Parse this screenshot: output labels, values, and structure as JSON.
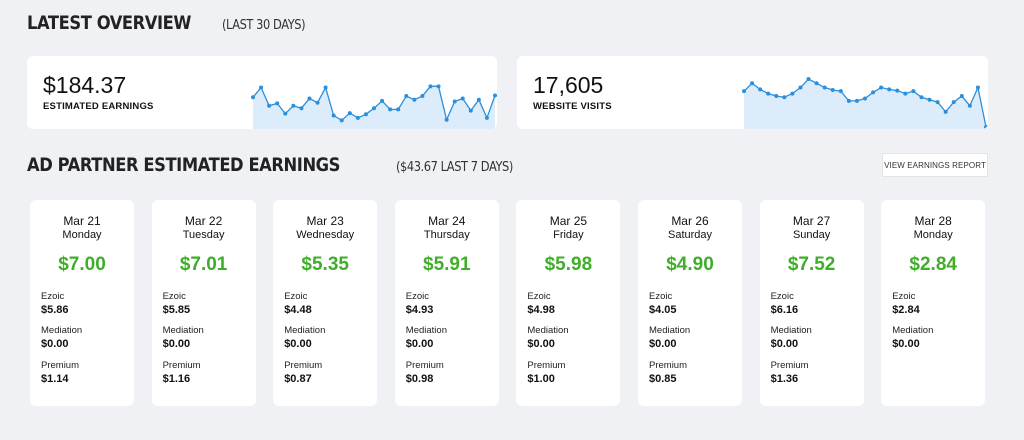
{
  "overview": {
    "title": "LATEST OVERVIEW",
    "subtitle": "(LAST 30 DAYS)",
    "earnings": {
      "value": "$184.37",
      "label": "ESTIMATED EARNINGS"
    },
    "visits": {
      "value": "17,605",
      "label": "WEBSITE VISITS"
    }
  },
  "partners": {
    "title": "AD PARTNER ESTIMATED EARNINGS",
    "subtitle": "($43.67 LAST 7 DAYS)",
    "report_button": "VIEW EARNINGS REPORT"
  },
  "chart_data": [
    {
      "type": "area",
      "series": [
        {
          "values": [
            0.58,
            0.42,
            0.72,
            0.68,
            0.85,
            0.72,
            0.76,
            0.6,
            0.67,
            0.42,
            0.88,
            0.96,
            0.84,
            0.92,
            0.86,
            0.76,
            0.64,
            0.78,
            0.78,
            0.56,
            0.62,
            0.56,
            0.4,
            0.4,
            0.95,
            0.65,
            0.6,
            0.8,
            0.62,
            0.92,
            0.55
          ]
        }
      ],
      "color": "#2b8fdb"
    },
    {
      "type": "area",
      "series": [
        {
          "values": [
            0.48,
            0.35,
            0.45,
            0.52,
            0.56,
            0.58,
            0.52,
            0.42,
            0.28,
            0.35,
            0.42,
            0.46,
            0.48,
            0.64,
            0.64,
            0.6,
            0.5,
            0.42,
            0.45,
            0.47,
            0.52,
            0.48,
            0.58,
            0.62,
            0.66,
            0.82,
            0.66,
            0.56,
            0.72,
            0.42,
            1.25
          ]
        }
      ],
      "color": "#2b8fdb"
    }
  ],
  "days": [
    {
      "date": "Mar 21",
      "weekday": "Monday",
      "total": "$7.00",
      "rows": [
        {
          "label": "Ezoic",
          "amount": "$5.86"
        },
        {
          "label": "Mediation",
          "amount": "$0.00"
        },
        {
          "label": "Premium",
          "amount": "$1.14"
        }
      ]
    },
    {
      "date": "Mar 22",
      "weekday": "Tuesday",
      "total": "$7.01",
      "rows": [
        {
          "label": "Ezoic",
          "amount": "$5.85"
        },
        {
          "label": "Mediation",
          "amount": "$0.00"
        },
        {
          "label": "Premium",
          "amount": "$1.16"
        }
      ]
    },
    {
      "date": "Mar 23",
      "weekday": "Wednesday",
      "total": "$5.35",
      "rows": [
        {
          "label": "Ezoic",
          "amount": "$4.48"
        },
        {
          "label": "Mediation",
          "amount": "$0.00"
        },
        {
          "label": "Premium",
          "amount": "$0.87"
        }
      ]
    },
    {
      "date": "Mar 24",
      "weekday": "Thursday",
      "total": "$5.91",
      "rows": [
        {
          "label": "Ezoic",
          "amount": "$4.93"
        },
        {
          "label": "Mediation",
          "amount": "$0.00"
        },
        {
          "label": "Premium",
          "amount": "$0.98"
        }
      ]
    },
    {
      "date": "Mar 25",
      "weekday": "Friday",
      "total": "$5.98",
      "rows": [
        {
          "label": "Ezoic",
          "amount": "$4.98"
        },
        {
          "label": "Mediation",
          "amount": "$0.00"
        },
        {
          "label": "Premium",
          "amount": "$1.00"
        }
      ]
    },
    {
      "date": "Mar 26",
      "weekday": "Saturday",
      "total": "$4.90",
      "rows": [
        {
          "label": "Ezoic",
          "amount": "$4.05"
        },
        {
          "label": "Mediation",
          "amount": "$0.00"
        },
        {
          "label": "Premium",
          "amount": "$0.85"
        }
      ]
    },
    {
      "date": "Mar 27",
      "weekday": "Sunday",
      "total": "$7.52",
      "rows": [
        {
          "label": "Ezoic",
          "amount": "$6.16"
        },
        {
          "label": "Mediation",
          "amount": "$0.00"
        },
        {
          "label": "Premium",
          "amount": "$1.36"
        }
      ]
    },
    {
      "date": "Mar 28",
      "weekday": "Monday",
      "total": "$2.84",
      "rows": [
        {
          "label": "Ezoic",
          "amount": "$2.84"
        },
        {
          "label": "Mediation",
          "amount": "$0.00"
        }
      ]
    }
  ]
}
